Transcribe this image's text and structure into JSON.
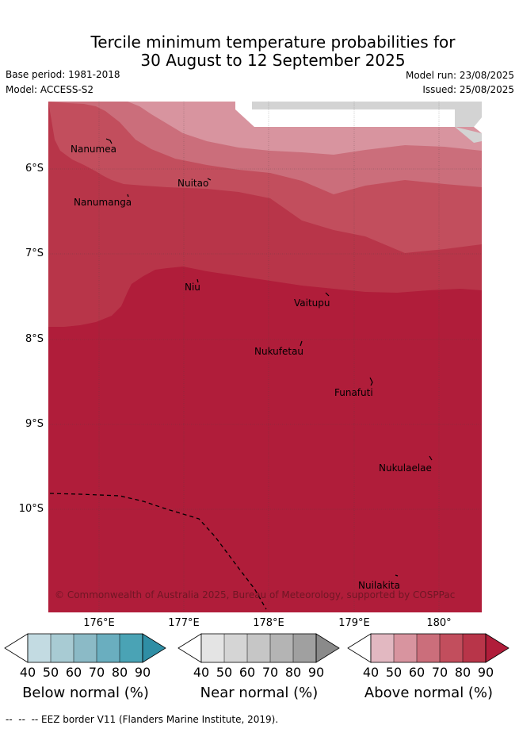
{
  "title": {
    "line1": "Tercile minimum temperature probabilities for",
    "line2": "30 August to 12 September 2025"
  },
  "meta": {
    "base_period": "Base period: 1981-2018",
    "model": "Model: ACCESS-S2",
    "model_run": "Model run: 23/08/2025",
    "issued": "Issued: 25/08/2025"
  },
  "map": {
    "latitude_labels": [
      "6°S",
      "7°S",
      "8°S",
      "9°S",
      "10°S"
    ],
    "longitude_labels": [
      "176°E",
      "177°E",
      "178°E",
      "179°E",
      "180°"
    ],
    "islands": [
      "Nanumea",
      "Nuitao",
      "Nanumanga",
      "Niu",
      "Vaitupu",
      "Nukufetau",
      "Funafuti",
      "Nukulaelae",
      "Nuilakita"
    ],
    "copyright": "© Commonwealth of Australia 2025, Bureau of Meteorology, supported by COSPPac",
    "colors": {
      "above_40": "#e2b8c1",
      "above_50": "#d8949f",
      "above_60": "#cb6e7b",
      "above_70": "#c24e5d",
      "above_80": "#b83549",
      "above_90": "#b01d3a",
      "land_mask": "#d3d3d3"
    }
  },
  "legend": {
    "ticks": [
      "40",
      "50",
      "60",
      "70",
      "80",
      "90"
    ],
    "below": {
      "title": "Below normal (%)",
      "colors": [
        "#ffffff",
        "#c3dbe2",
        "#a8cbd3",
        "#8bbac6",
        "#6aaebf",
        "#4aa3b5",
        "#2f8ea5"
      ]
    },
    "near": {
      "title": "Near normal (%)",
      "colors": [
        "#ffffff",
        "#e4e4e4",
        "#d5d5d5",
        "#c6c6c6",
        "#b4b4b4",
        "#a0a0a0",
        "#8a8a8a"
      ]
    },
    "above": {
      "title": "Above normal (%)",
      "colors": [
        "#ffffff",
        "#e2b8c1",
        "#d8949f",
        "#cb6e7b",
        "#c24e5d",
        "#b83549",
        "#b01d3a"
      ]
    }
  },
  "footer": {
    "eez_note": "--  --  -- EEZ border V11 (Flanders Marine Institute, 2019)."
  }
}
